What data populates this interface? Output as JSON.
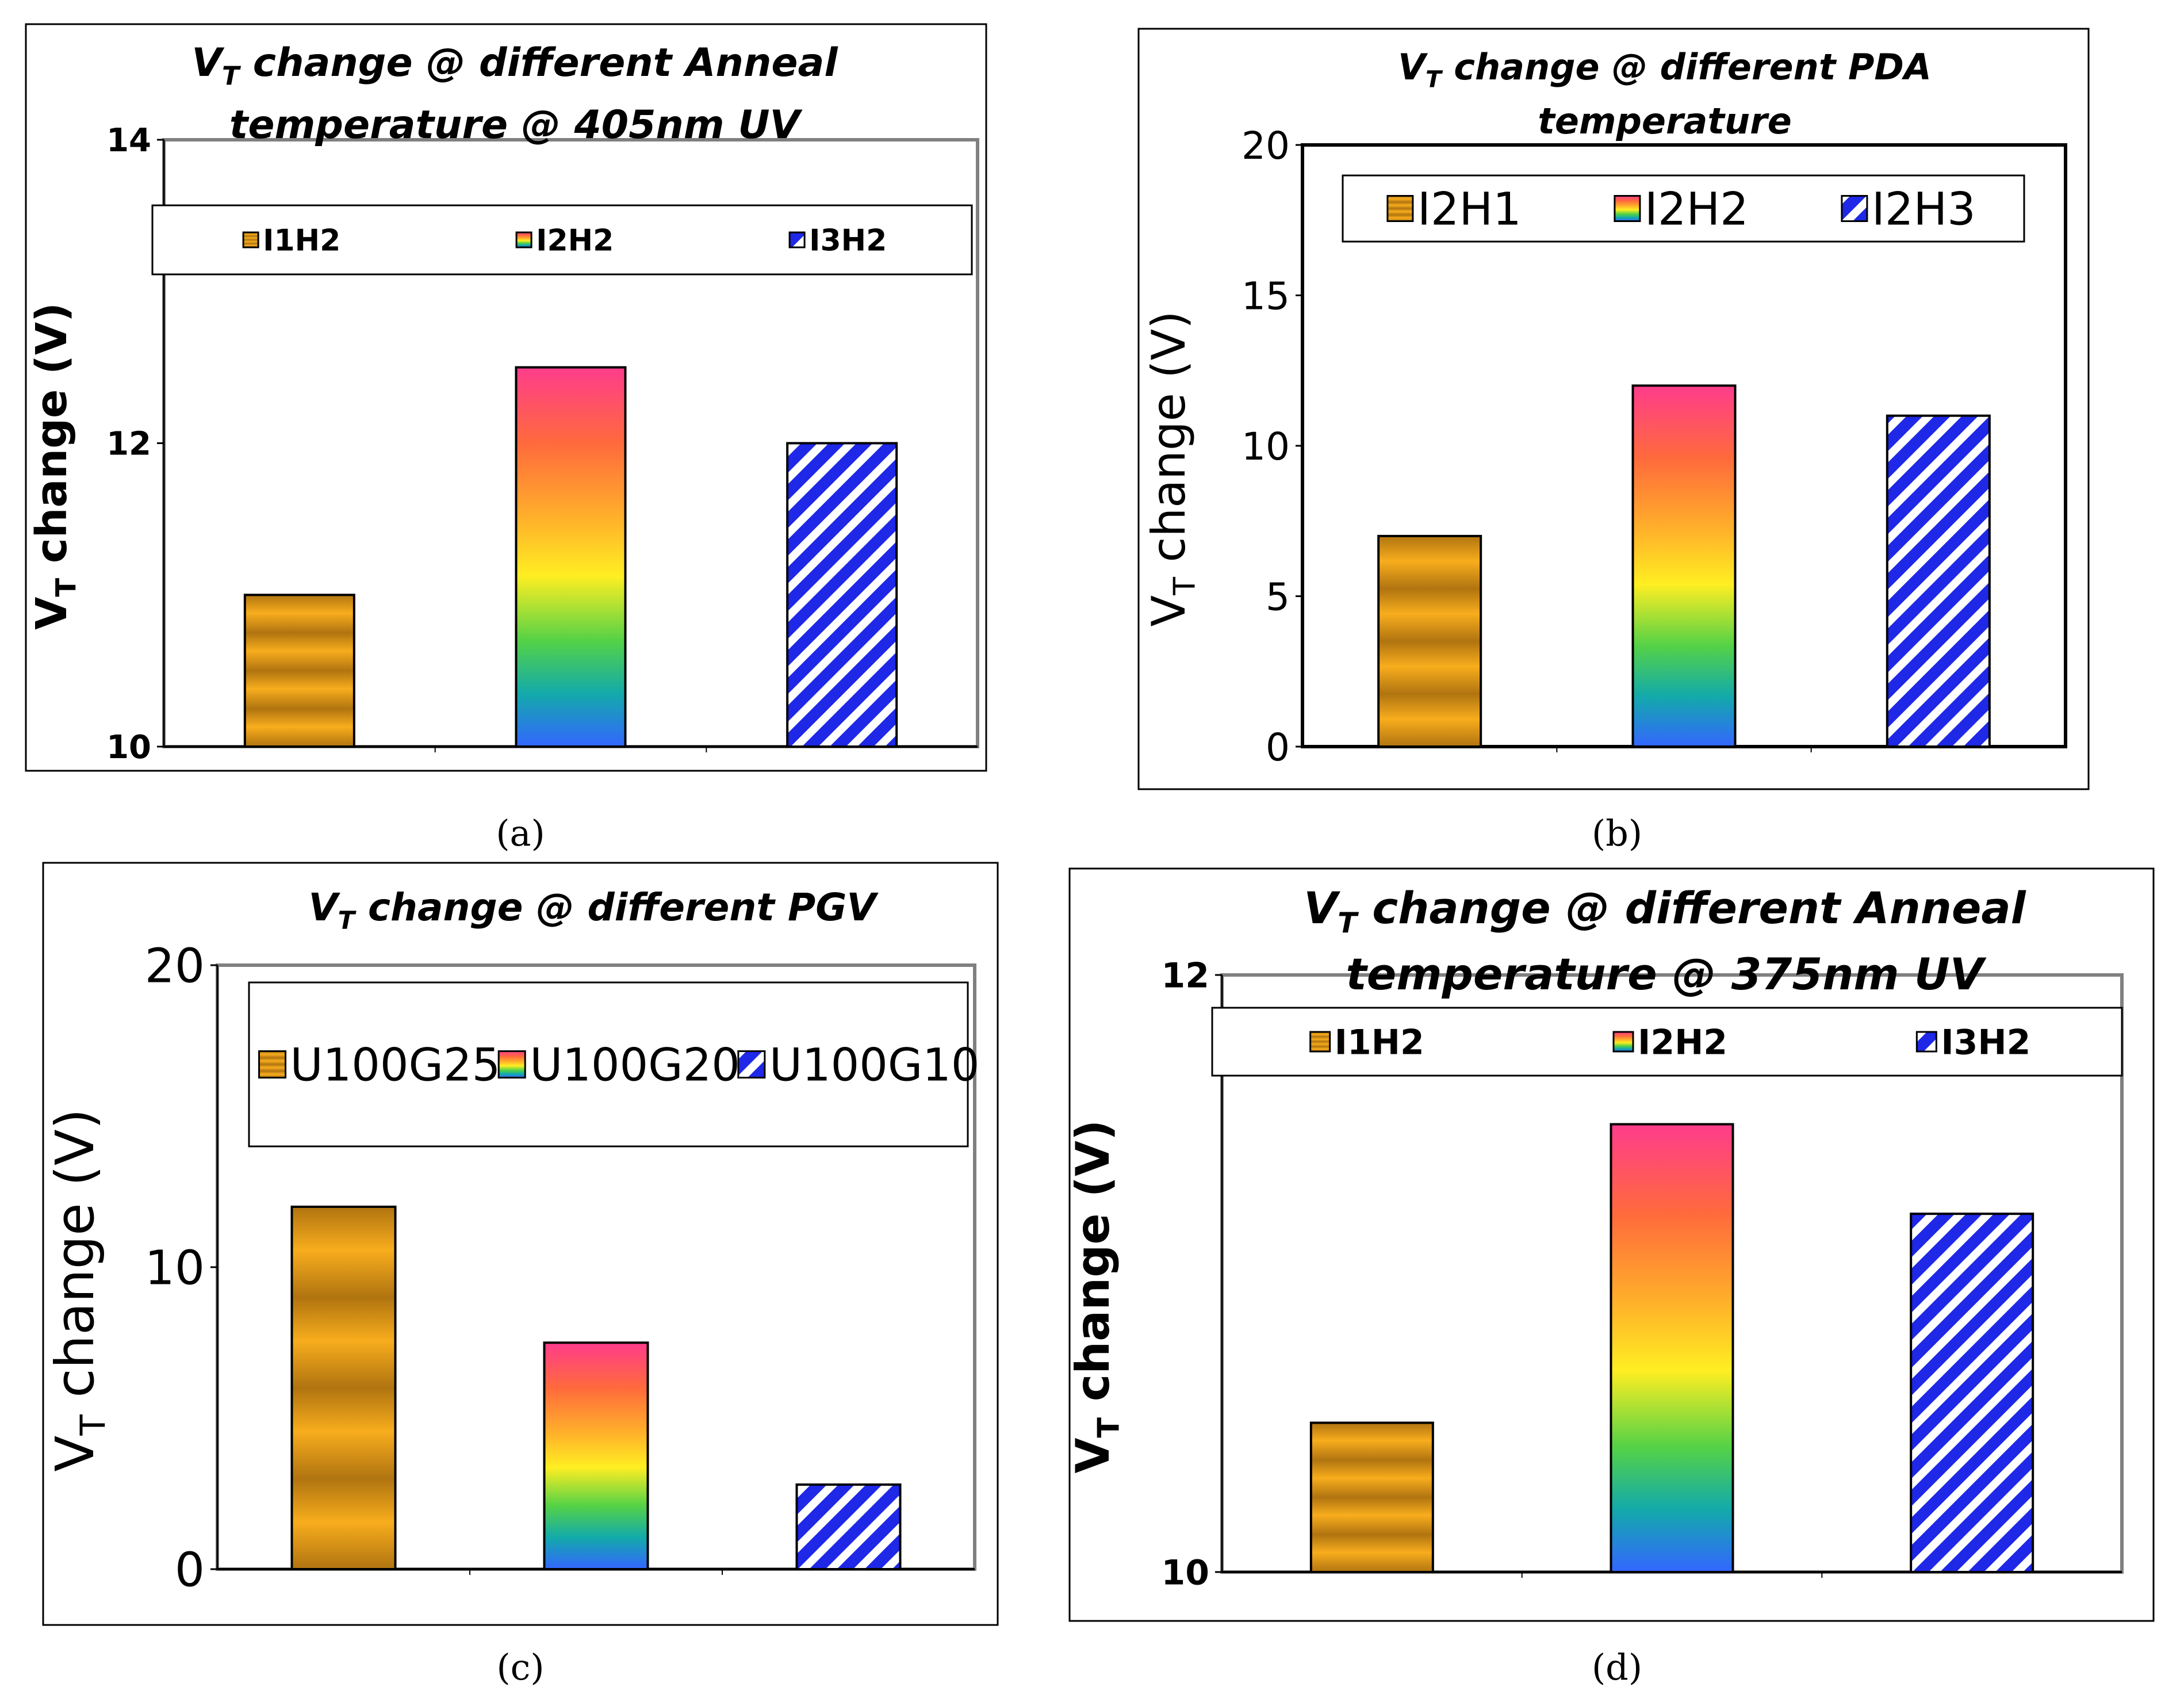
{
  "figure_labels": [
    "(a)",
    "(b)",
    "(c)",
    "(d)"
  ],
  "colors": {
    "panel_border": "#000000",
    "plot_border": "#808080",
    "bar_outline": "#000000",
    "orange_light": "#f7a81a",
    "orange_dark": "#b07410",
    "hatch_blue": "#1e28e6"
  },
  "chart_data": [
    {
      "id": "a",
      "type": "bar",
      "title_prefix": "V",
      "title_sub": "T",
      "title_line1": " change @ different Anneal",
      "title_line2": "temperature @ 405nm UV",
      "ylabel_prefix": "V",
      "ylabel_sub": "T",
      "ylabel_suffix": " change (V)",
      "ylim": [
        10,
        14
      ],
      "yticks": [
        "10",
        "12",
        "14"
      ],
      "categories": [
        "I1H2",
        "I2H2",
        "I3H2"
      ],
      "values": [
        11.0,
        12.5,
        12.0
      ],
      "fills": [
        "orange",
        "rainbow",
        "hatch"
      ],
      "legend": [
        "I1H2",
        "I2H2",
        "I3H2"
      ],
      "legend_position": "top"
    },
    {
      "id": "b",
      "type": "bar",
      "title_prefix": "V",
      "title_sub": "T",
      "title_line1": " change @ different PDA",
      "title_line2": "temperature",
      "ylabel_prefix": "V",
      "ylabel_sub": "T",
      "ylabel_suffix": " change (V)",
      "ylim": [
        0,
        20
      ],
      "yticks": [
        "0",
        "5",
        "10",
        "15",
        "20"
      ],
      "categories": [
        "I2H1",
        "I2H2",
        "I2H3"
      ],
      "values": [
        7.0,
        12.0,
        11.0
      ],
      "fills": [
        "orange",
        "rainbow",
        "hatch"
      ],
      "legend": [
        "I2H1",
        "I2H2",
        "I2H3"
      ],
      "legend_position": "top"
    },
    {
      "id": "c",
      "type": "bar",
      "title_prefix": "V",
      "title_sub": "T",
      "title_line1": "  change @ different PGV",
      "title_line2": "",
      "ylabel_prefix": "V",
      "ylabel_sub": "T",
      "ylabel_suffix": " change (V)",
      "ylim": [
        0,
        20
      ],
      "yticks": [
        "0",
        "10",
        "20"
      ],
      "categories": [
        "U100G25",
        "U100G20",
        "U100G10"
      ],
      "values": [
        12.0,
        7.5,
        2.8
      ],
      "fills": [
        "orange",
        "rainbow",
        "hatch"
      ],
      "legend": [
        "U100G25",
        "U100G20",
        "U100G10"
      ],
      "legend_position": "top"
    },
    {
      "id": "d",
      "type": "bar",
      "title_prefix": "V",
      "title_sub": "T",
      "title_line1": " change @ different Anneal",
      "title_line2": "temperature @ 375nm UV",
      "ylabel_prefix": "V",
      "ylabel_sub": "T",
      "ylabel_suffix": " change (V)",
      "ylim": [
        10,
        12
      ],
      "yticks": [
        "10",
        "12"
      ],
      "categories": [
        "I1H2",
        "I2H2",
        "I3H2"
      ],
      "values": [
        10.5,
        11.5,
        11.2
      ],
      "fills": [
        "orange",
        "rainbow",
        "hatch"
      ],
      "legend": [
        "I1H2",
        "I2H2",
        "I3H2"
      ],
      "legend_position": "top"
    }
  ]
}
